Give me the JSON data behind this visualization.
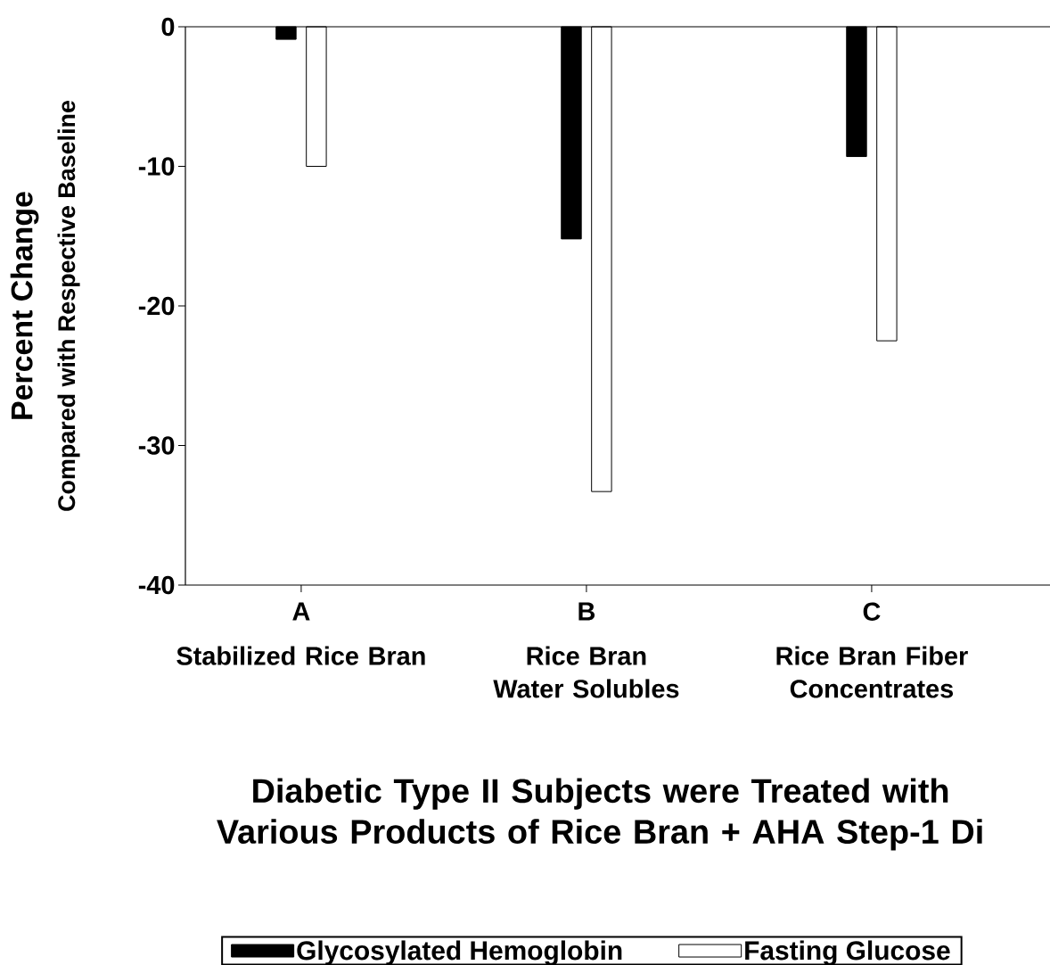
{
  "chart_data": {
    "type": "bar",
    "title": "Diabetic Type II Subjects were Treated with Various Products of Rice Bran + AHA Step-1 Di",
    "ylabel": "Percent Change",
    "categories": [
      "A",
      "B",
      "C"
    ],
    "series": [
      {
        "name": "Glycosylated Hemoglobin",
        "color": "#000000",
        "values": [
          -0.9,
          -15.2,
          -9.3
        ]
      },
      {
        "name": "Fasting Glucose",
        "color": "#ffffff",
        "values": [
          -10.0,
          -33.3,
          -22.5
        ]
      }
    ],
    "annotations": [
      "Compared with Respective Baseline",
      "Stabilized Rice Bran",
      "Rice Bran Water Solubles",
      "Rice Bran Fiber Concentrates"
    ],
    "ylim": [
      -40,
      0
    ],
    "yticks": [
      0,
      -10,
      -20,
      -30,
      -40
    ],
    "legend": "bottom"
  }
}
